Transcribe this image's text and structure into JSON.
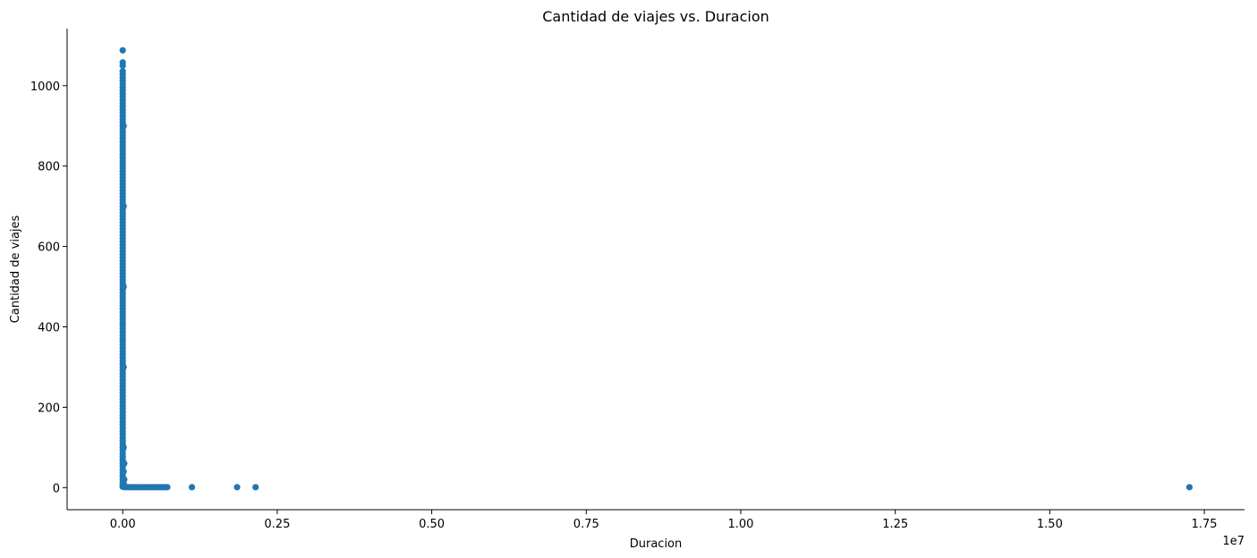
{
  "chart_data": {
    "type": "scatter",
    "title": "Cantidad de viajes vs. Duracion",
    "xlabel": "Duracion",
    "ylabel": "Cantidad de viajes",
    "x_offset_label": "1e7",
    "x_scale_factor": 10000000,
    "xlim": [
      -900000,
      18150000
    ],
    "ylim": [
      -55,
      1142
    ],
    "xticks": [
      0,
      2500000,
      5000000,
      7500000,
      10000000,
      12500000,
      15000000,
      17500000
    ],
    "xtick_labels": [
      "0.00",
      "0.25",
      "0.50",
      "0.75",
      "1.00",
      "1.25",
      "1.50",
      "1.75"
    ],
    "yticks": [
      0,
      200,
      400,
      600,
      800,
      1000
    ],
    "ytick_labels": [
      "0",
      "200",
      "400",
      "600",
      "800",
      "1000"
    ],
    "grid": false,
    "legend": "none",
    "marker_color": "#1f77b4",
    "series": [
      {
        "points": [
          [
            0,
            1088
          ],
          [
            0,
            1058
          ],
          [
            0,
            1050
          ],
          [
            0,
            1036
          ],
          [
            0,
            1028
          ],
          [
            0,
            1020
          ],
          [
            0,
            1012
          ],
          [
            0,
            1004
          ],
          [
            0,
            996
          ],
          [
            0,
            988
          ],
          [
            0,
            980
          ],
          [
            0,
            972
          ],
          [
            0,
            964
          ],
          [
            0,
            956
          ],
          [
            0,
            948
          ],
          [
            0,
            940
          ],
          [
            0,
            932
          ],
          [
            0,
            924
          ],
          [
            0,
            916
          ],
          [
            0,
            908
          ],
          [
            0,
            900
          ],
          [
            0,
            892
          ],
          [
            0,
            884
          ],
          [
            0,
            876
          ],
          [
            0,
            868
          ],
          [
            0,
            860
          ],
          [
            0,
            852
          ],
          [
            0,
            844
          ],
          [
            0,
            836
          ],
          [
            0,
            828
          ],
          [
            0,
            820
          ],
          [
            0,
            812
          ],
          [
            0,
            804
          ],
          [
            0,
            796
          ],
          [
            0,
            788
          ],
          [
            0,
            780
          ],
          [
            0,
            772
          ],
          [
            0,
            764
          ],
          [
            0,
            756
          ],
          [
            0,
            748
          ],
          [
            0,
            740
          ],
          [
            0,
            732
          ],
          [
            0,
            724
          ],
          [
            0,
            716
          ],
          [
            0,
            708
          ],
          [
            0,
            700
          ],
          [
            0,
            692
          ],
          [
            0,
            684
          ],
          [
            0,
            676
          ],
          [
            0,
            668
          ],
          [
            0,
            660
          ],
          [
            0,
            652
          ],
          [
            0,
            644
          ],
          [
            0,
            636
          ],
          [
            0,
            628
          ],
          [
            0,
            620
          ],
          [
            0,
            612
          ],
          [
            0,
            604
          ],
          [
            0,
            596
          ],
          [
            0,
            588
          ],
          [
            0,
            580
          ],
          [
            0,
            572
          ],
          [
            0,
            564
          ],
          [
            0,
            556
          ],
          [
            0,
            548
          ],
          [
            0,
            540
          ],
          [
            0,
            532
          ],
          [
            0,
            524
          ],
          [
            0,
            516
          ],
          [
            0,
            508
          ],
          [
            0,
            500
          ],
          [
            0,
            492
          ],
          [
            0,
            484
          ],
          [
            0,
            476
          ],
          [
            0,
            468
          ],
          [
            0,
            460
          ],
          [
            0,
            452
          ],
          [
            0,
            444
          ],
          [
            0,
            436
          ],
          [
            0,
            428
          ],
          [
            0,
            420
          ],
          [
            0,
            412
          ],
          [
            0,
            404
          ],
          [
            0,
            396
          ],
          [
            0,
            388
          ],
          [
            0,
            380
          ],
          [
            0,
            372
          ],
          [
            0,
            364
          ],
          [
            0,
            356
          ],
          [
            0,
            348
          ],
          [
            0,
            340
          ],
          [
            0,
            332
          ],
          [
            0,
            324
          ],
          [
            0,
            316
          ],
          [
            0,
            308
          ],
          [
            0,
            300
          ],
          [
            0,
            292
          ],
          [
            0,
            284
          ],
          [
            0,
            276
          ],
          [
            0,
            268
          ],
          [
            0,
            260
          ],
          [
            0,
            252
          ],
          [
            0,
            244
          ],
          [
            0,
            236
          ],
          [
            0,
            228
          ],
          [
            0,
            220
          ],
          [
            0,
            212
          ],
          [
            0,
            204
          ],
          [
            0,
            196
          ],
          [
            0,
            188
          ],
          [
            0,
            180
          ],
          [
            0,
            172
          ],
          [
            0,
            164
          ],
          [
            0,
            156
          ],
          [
            0,
            148
          ],
          [
            0,
            140
          ],
          [
            0,
            132
          ],
          [
            0,
            124
          ],
          [
            0,
            116
          ],
          [
            0,
            108
          ],
          [
            0,
            100
          ],
          [
            0,
            92
          ],
          [
            0,
            84
          ],
          [
            0,
            76
          ],
          [
            0,
            68
          ],
          [
            0,
            60
          ],
          [
            0,
            52
          ],
          [
            0,
            44
          ],
          [
            0,
            36
          ],
          [
            0,
            28
          ],
          [
            0,
            20
          ],
          [
            0,
            12
          ],
          [
            0,
            6
          ],
          [
            0,
            2
          ],
          [
            15000,
            900
          ],
          [
            15000,
            700
          ],
          [
            15000,
            500
          ],
          [
            15000,
            300
          ],
          [
            15000,
            100
          ],
          [
            15000,
            40
          ],
          [
            15000,
            10
          ],
          [
            15000,
            3
          ],
          [
            25000,
            60
          ],
          [
            25000,
            20
          ],
          [
            25000,
            5
          ],
          [
            40000,
            1
          ],
          [
            80000,
            1
          ],
          [
            120000,
            1
          ],
          [
            160000,
            1
          ],
          [
            200000,
            1
          ],
          [
            240000,
            1
          ],
          [
            280000,
            1
          ],
          [
            320000,
            1
          ],
          [
            360000,
            1
          ],
          [
            400000,
            1
          ],
          [
            440000,
            1
          ],
          [
            480000,
            1
          ],
          [
            520000,
            1
          ],
          [
            560000,
            1
          ],
          [
            600000,
            1
          ],
          [
            640000,
            1
          ],
          [
            680000,
            1
          ],
          [
            720000,
            1
          ],
          [
            1120000,
            1
          ],
          [
            1850000,
            1
          ],
          [
            2150000,
            1
          ],
          [
            17260000,
            1
          ]
        ]
      }
    ]
  }
}
